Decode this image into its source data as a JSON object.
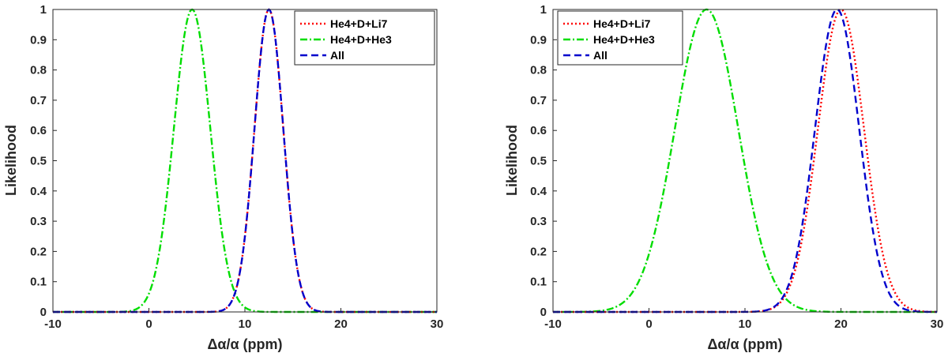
{
  "chart_data": [
    {
      "type": "line",
      "xlabel": "Δα/α (ppm)",
      "ylabel": "Likelihood",
      "xlim": [
        -10,
        30
      ],
      "ylim": [
        0,
        1
      ],
      "xticks": [
        "-10",
        "0",
        "10",
        "20",
        "30"
      ],
      "yticks": [
        "0",
        "0.1",
        "0.2",
        "0.3",
        "0.4",
        "0.5",
        "0.6",
        "0.7",
        "0.8",
        "0.9",
        "1"
      ],
      "legend_position": "top-right",
      "series": [
        {
          "name": "He4+D+Li7",
          "color": "#ff0000",
          "style": "dotted",
          "peak": 12.5,
          "sigma": 1.5
        },
        {
          "name": "He4+D+He3",
          "color": "#00dd00",
          "style": "dashdot",
          "peak": 4.5,
          "sigma": 1.9
        },
        {
          "name": "All",
          "color": "#0000cc",
          "style": "dashed",
          "peak": 12.5,
          "sigma": 1.5
        }
      ]
    },
    {
      "type": "line",
      "xlabel": "Δα/α (ppm)",
      "ylabel": "Likelihood",
      "xlim": [
        -10,
        30
      ],
      "ylim": [
        0,
        1
      ],
      "xticks": [
        "-10",
        "0",
        "10",
        "20",
        "30"
      ],
      "yticks": [
        "0",
        "0.1",
        "0.2",
        "0.3",
        "0.4",
        "0.5",
        "0.6",
        "0.7",
        "0.8",
        "0.9",
        "1"
      ],
      "legend_position": "top-left",
      "series": [
        {
          "name": "He4+D+Li7",
          "color": "#ff0000",
          "style": "dotted",
          "peak": 20.0,
          "sigma": 2.4
        },
        {
          "name": "He4+D+He3",
          "color": "#00dd00",
          "style": "dashdot",
          "peak": 6.0,
          "sigma": 3.3
        },
        {
          "name": "All",
          "color": "#0000cc",
          "style": "dashed",
          "peak": 19.6,
          "sigma": 2.3
        }
      ]
    }
  ]
}
